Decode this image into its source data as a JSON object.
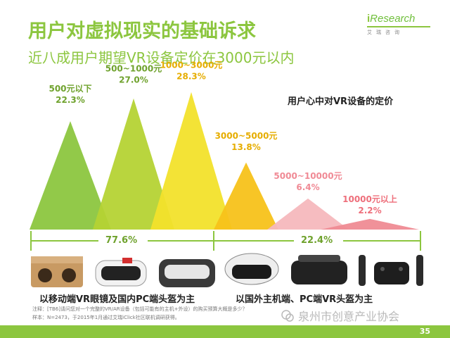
{
  "title": "用户对虚拟现实的基础诉求",
  "subtitle": "近八成用户期望VR设备定价在3000元以内",
  "logo": {
    "brand_i": "i",
    "brand_rest": "Research",
    "sub": "艾瑞咨询"
  },
  "legend_title": "用户心中对VR设备的定价",
  "chart_data": {
    "type": "area",
    "title": "用户心中对VR设备的定价",
    "categories": [
      "500元以下",
      "500~1000元",
      "1000~3000元",
      "3000~5000元",
      "5000~10000元",
      "10000元以上"
    ],
    "values": [
      22.3,
      27.0,
      28.3,
      13.8,
      6.4,
      2.2
    ],
    "value_labels": [
      "22.3%",
      "27.0%",
      "28.3%",
      "13.8%",
      "6.4%",
      "2.2%"
    ],
    "colors": [
      "#8cc63f",
      "#b5d334",
      "#f2e12b",
      "#f7c21a",
      "#f5b8bd",
      "#ef8b94"
    ],
    "label_colors": [
      "#6fa22d",
      "#6fa22d",
      "#e6ad00",
      "#e6ad00",
      "#f08a95",
      "#ee6f7b"
    ],
    "groups": [
      {
        "label": "77.6%",
        "value": 77.6,
        "caption": "以移动端VR眼镜及国内PC端头盔为主",
        "color": "#8cc63f"
      },
      {
        "label": "22.4%",
        "value": 22.4,
        "caption": "以国外主机端、PC端VR头盔为主",
        "color": "#8cc63f"
      }
    ]
  },
  "footnotes": [
    "注释：[TB6]请问您对一个完整的VR/AR设备（包括可能有的主机+外设）的购买预算大概是多少？",
    "样本：N=2473，于2015年1月通过艾瑞iClick社区联机调研获得。"
  ],
  "watermark": "泉州市创意产业协会",
  "page_number": "35"
}
